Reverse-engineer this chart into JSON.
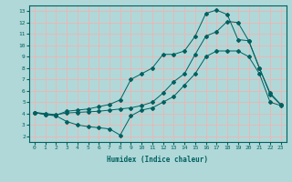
{
  "title": "",
  "xlabel": "Humidex (Indice chaleur)",
  "bg_color": "#b0d8d8",
  "grid_color": "#e8b8b8",
  "line_color": "#006060",
  "xlim": [
    -0.5,
    23.5
  ],
  "ylim": [
    1.5,
    13.5
  ],
  "xticks": [
    0,
    1,
    2,
    3,
    4,
    5,
    6,
    7,
    8,
    9,
    10,
    11,
    12,
    13,
    14,
    15,
    16,
    17,
    18,
    19,
    20,
    21,
    22,
    23
  ],
  "yticks": [
    2,
    3,
    4,
    5,
    6,
    7,
    8,
    9,
    10,
    11,
    12,
    13
  ],
  "line_max": {
    "x": [
      0,
      1,
      2,
      3,
      4,
      5,
      6,
      7,
      8,
      9,
      10,
      11,
      12,
      13,
      14,
      15,
      16,
      17,
      18,
      19,
      20,
      21,
      22,
      23
    ],
    "y": [
      4.1,
      3.9,
      3.85,
      4.2,
      4.3,
      4.4,
      4.6,
      4.8,
      5.2,
      7.0,
      7.5,
      8.0,
      9.2,
      9.2,
      9.5,
      10.8,
      12.8,
      13.1,
      12.7,
      10.5,
      10.4,
      8.0,
      5.8,
      4.8
    ]
  },
  "line_avg": {
    "x": [
      0,
      1,
      2,
      3,
      4,
      5,
      6,
      7,
      8,
      9,
      10,
      11,
      12,
      13,
      14,
      15,
      16,
      17,
      18,
      19,
      20,
      21,
      22,
      23
    ],
    "y": [
      4.1,
      4.0,
      3.9,
      4.05,
      4.1,
      4.15,
      4.2,
      4.3,
      4.4,
      4.5,
      4.7,
      5.0,
      5.8,
      6.8,
      7.5,
      9.2,
      10.8,
      11.2,
      12.1,
      12.0,
      10.4,
      8.0,
      5.7,
      4.75
    ]
  },
  "line_min": {
    "x": [
      0,
      1,
      2,
      3,
      4,
      5,
      6,
      7,
      8,
      9,
      10,
      11,
      12,
      13,
      14,
      15,
      16,
      17,
      18,
      19,
      20,
      21,
      22,
      23
    ],
    "y": [
      4.1,
      3.9,
      3.8,
      3.3,
      3.0,
      2.85,
      2.75,
      2.65,
      2.1,
      3.8,
      4.3,
      4.5,
      5.0,
      5.5,
      6.5,
      7.5,
      9.0,
      9.5,
      9.5,
      9.5,
      9.0,
      7.5,
      5.0,
      4.7
    ]
  }
}
